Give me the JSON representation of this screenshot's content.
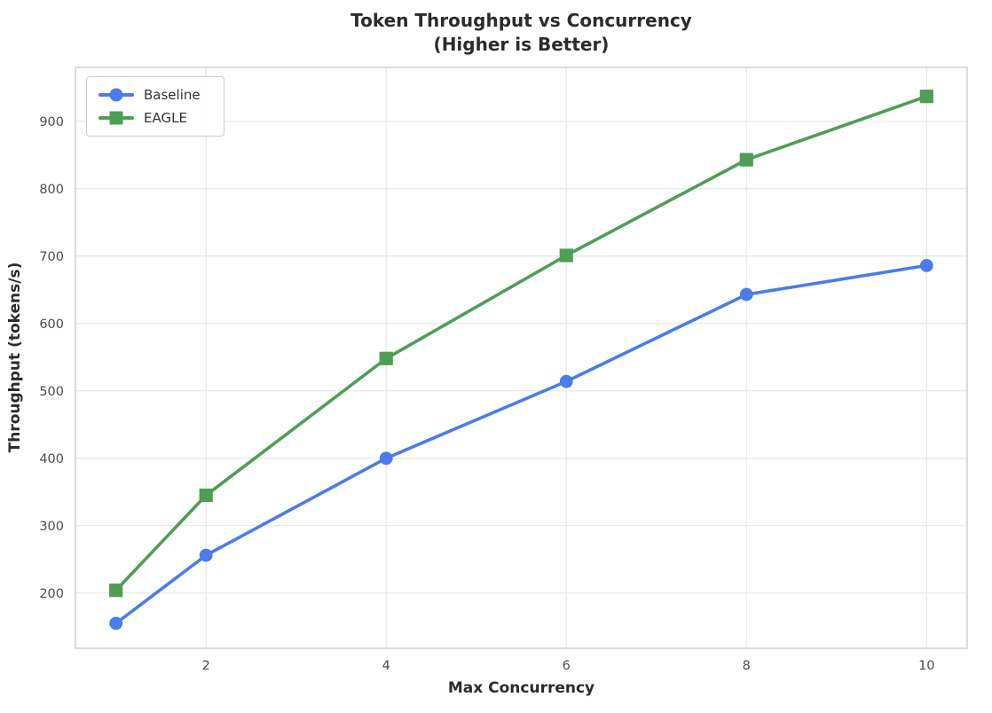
{
  "chart_data": {
    "type": "line",
    "title": "Token Throughput vs Concurrency",
    "subtitle": "(Higher is Better)",
    "xlabel": "Max Concurrency",
    "ylabel": "Throughput (tokens/s)",
    "x": [
      1,
      2,
      4,
      6,
      8,
      10
    ],
    "series": [
      {
        "name": "Baseline",
        "color": "#4a7cea",
        "marker": "circle",
        "values": [
          155,
          256,
          400,
          514,
          643,
          686
        ]
      },
      {
        "name": "EAGLE",
        "color": "#4f9e55",
        "marker": "square",
        "values": [
          204,
          345,
          548,
          701,
          843,
          937
        ]
      }
    ],
    "xticks": [
      2,
      4,
      6,
      8,
      10
    ],
    "yticks": [
      200,
      300,
      400,
      500,
      600,
      700,
      800,
      900
    ],
    "xlim": [
      0.55,
      10.45
    ],
    "ylim": [
      118,
      980
    ],
    "grid": true,
    "legend_position": "upper left",
    "colors": {
      "grid": "#e7e7e7",
      "spine": "#c9c9c9",
      "tick_label": "#4d4d4d",
      "title": "#2b2b2b",
      "axis_label": "#2b2b2b",
      "legend_border": "#cccccc",
      "background": "#ffffff"
    }
  }
}
